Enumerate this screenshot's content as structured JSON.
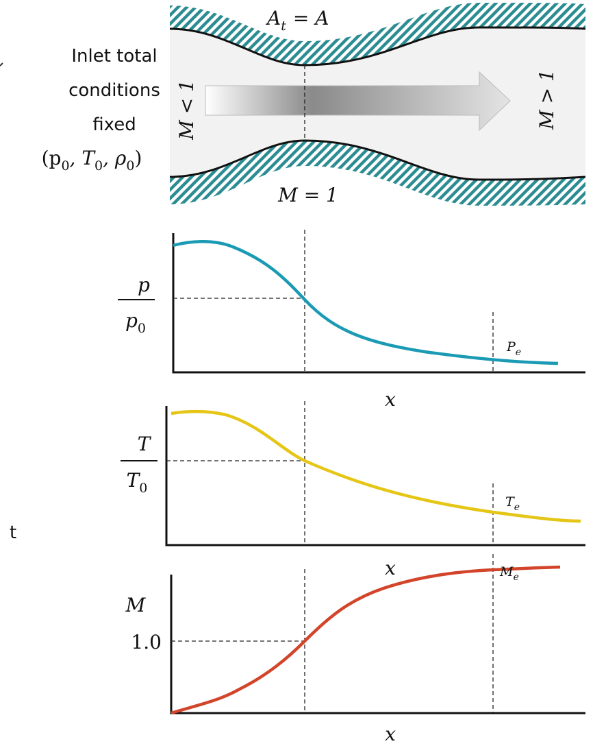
{
  "nozzle": {
    "throat_area_label": [
      "A",
      "t",
      "= A"
    ],
    "subsonic_label": "M < 1",
    "supersonic_label": "M > 1",
    "throat_mach_label": "M = 1"
  },
  "inlet": {
    "lines": [
      "Inlet total",
      "conditions",
      "fixed"
    ],
    "stagnation_parts": [
      "(p",
      "0",
      ", T",
      "0",
      ", ρ",
      "0",
      ")"
    ]
  },
  "pressure_plot": {
    "y_label": [
      "p",
      "p",
      "0"
    ],
    "x_label": "x",
    "exit_label": [
      "P",
      "e"
    ]
  },
  "temperature_plot": {
    "y_label": [
      "T",
      "T",
      "0"
    ],
    "x_label": "x",
    "exit_label": [
      "T",
      "e"
    ]
  },
  "mach_plot": {
    "y_label": "M",
    "throat_value": "1.0",
    "x_label": "x",
    "exit_label": [
      "M",
      "e"
    ]
  },
  "cropped_text": "t"
}
